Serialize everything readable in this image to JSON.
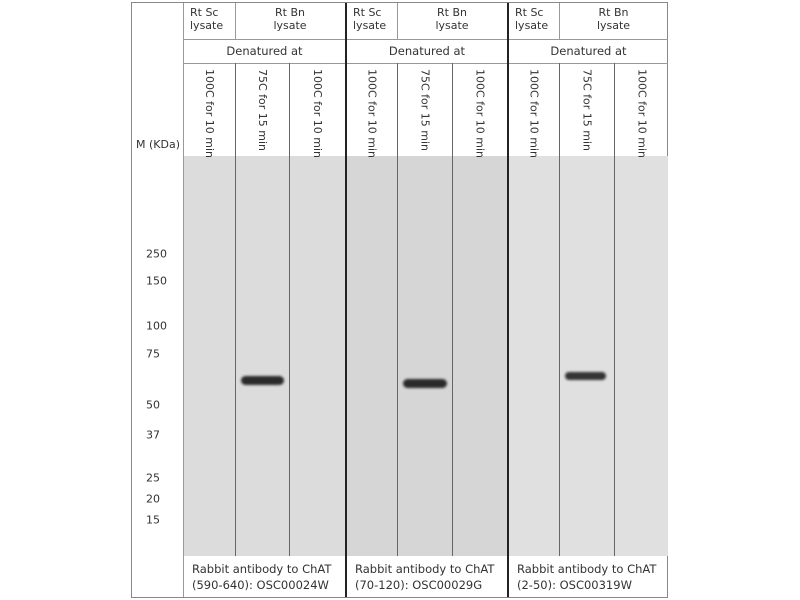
{
  "axis_label": "M (KDa)",
  "markers": [
    "250",
    "150",
    "100",
    "75",
    "50",
    "37",
    "25",
    "20",
    "15"
  ],
  "panels": [
    {
      "sample1": "Rt Sc\nlysate",
      "sample1_l1": "Rt Sc",
      "sample1_l2": "lysate",
      "sample2_l1": "Rt Bn",
      "sample2_l2": "lysate",
      "denatured": "Denatured at",
      "lanes": [
        "100C for 10 min",
        "75C for 15 min",
        "100C for 10 min"
      ],
      "caption_l1": "Rabbit antibody to ChAT",
      "caption_l2": "(590-640): OSC00024W"
    },
    {
      "sample1_l1": "Rt Sc",
      "sample1_l2": "lysate",
      "sample2_l1": "Rt Bn",
      "sample2_l2": "lysate",
      "denatured": "Denatured at",
      "lanes": [
        "100C for 10 min",
        "75C for 15 min",
        "100C for 10 min"
      ],
      "caption_l1": "Rabbit antibody to ChAT",
      "caption_l2": "(70-120): OSC00029G"
    },
    {
      "sample1_l1": "Rt Sc",
      "sample1_l2": "lysate",
      "sample2_l1": "Rt Bn",
      "sample2_l2": "lysate",
      "denatured": "Denatured at",
      "lanes": [
        "100C for 10 min",
        "75C for 15 min",
        "100C for 10 min"
      ],
      "caption_l1": "Rabbit antibody to ChAT",
      "caption_l2": "(2-50): OSC00319W"
    }
  ]
}
